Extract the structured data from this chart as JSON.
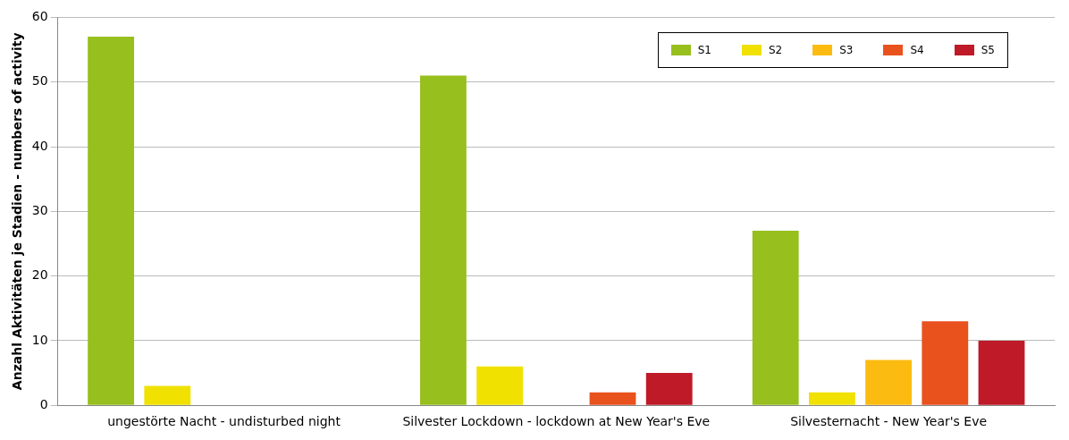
{
  "chart_data": {
    "type": "bar",
    "ylabel": "Anzahl Aktivitäten je Stadien - numbers of activity",
    "categories": [
      "ungestörte Nacht - undisturbed night",
      "Silvester Lockdown - lockdown at New Year's Eve",
      "Silvesternacht - New Year's Eve"
    ],
    "series": [
      {
        "name": "S1",
        "color": "#97bf1e",
        "values": [
          57,
          51,
          27
        ]
      },
      {
        "name": "S2",
        "color": "#f0e100",
        "values": [
          3,
          6,
          2
        ]
      },
      {
        "name": "S3",
        "color": "#fbbb10",
        "values": [
          0,
          0,
          7
        ]
      },
      {
        "name": "S4",
        "color": "#e9511d",
        "values": [
          0,
          2,
          13
        ]
      },
      {
        "name": "S5",
        "color": "#be1a28",
        "values": [
          0,
          5,
          10
        ]
      }
    ],
    "ylim": [
      0,
      60
    ],
    "yticks": [
      0,
      10,
      20,
      30,
      40,
      50,
      60
    ],
    "grid": "y",
    "legend": "top right"
  }
}
